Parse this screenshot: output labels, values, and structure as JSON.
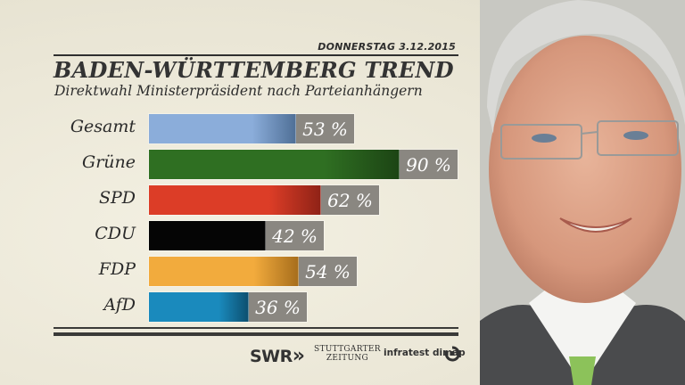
{
  "header": {
    "date": "DONNERSTAG  3.12.2015",
    "title": "BADEN-WÜRTTEMBERG TREND",
    "subtitle": "Direktwahl Ministerpräsident nach Parteianhängern"
  },
  "chart_data": {
    "type": "bar",
    "orientation": "horizontal",
    "title": "BADEN-WÜRTTEMBERG TREND",
    "subtitle": "Direktwahl Ministerpräsident nach Parteianhängern",
    "categories": [
      "Gesamt",
      "Grüne",
      "SPD",
      "CDU",
      "FDP",
      "AfD"
    ],
    "values": [
      53,
      90,
      62,
      42,
      54,
      36
    ],
    "value_labels": [
      "53 %",
      "90 %",
      "62 %",
      "42 %",
      "54 %",
      "36 %"
    ],
    "unit": "%",
    "colors": [
      "#87a9d6",
      "#2d6b22",
      "#d83a26",
      "#050505",
      "#f0aa3c",
      "#1a86b8"
    ],
    "xlabel": "",
    "ylabel": "",
    "xlim": [
      0,
      100
    ],
    "grid": false,
    "legend": "none"
  },
  "rows": [
    {
      "label": "Gesamt",
      "value": 53,
      "value_label": "53 %",
      "color_start": "#8badda",
      "color_end": "#4f6f96"
    },
    {
      "label": "Grüne",
      "value": 90,
      "value_label": "90 %",
      "color_start": "#2f6f22",
      "color_end": "#1c4414"
    },
    {
      "label": "SPD",
      "value": 62,
      "value_label": "62 %",
      "color_start": "#dc3d27",
      "color_end": "#8e2216"
    },
    {
      "label": "CDU",
      "value": 42,
      "value_label": "42 %",
      "color_start": "#050505",
      "color_end": "#050505"
    },
    {
      "label": "FDP",
      "value": 54,
      "value_label": "54 %",
      "color_start": "#f2ab3d",
      "color_end": "#a66d1b"
    },
    {
      "label": "AfD",
      "value": 36,
      "value_label": "36 %",
      "color_start": "#1a8abd",
      "color_end": "#0c4e6e"
    }
  ],
  "footer": {
    "logo_swr": "SWR",
    "logo_swr_arrows": "»",
    "logo_stz_line1": "STUTTGARTER",
    "logo_stz_line2": "ZEITUNG",
    "logo_infratest": "infratest dimap"
  },
  "photo": {
    "icon": "portrait-photo"
  }
}
